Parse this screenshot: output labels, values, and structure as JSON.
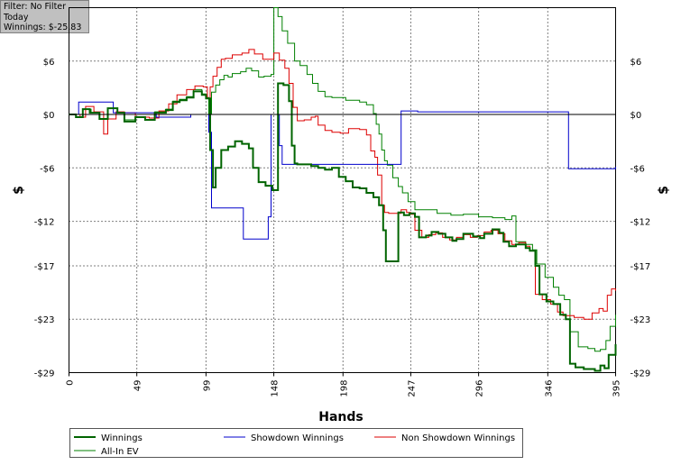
{
  "info": {
    "filter": "Filter: No Filter",
    "period": "Today",
    "winnings": "Winnings: $-25.83"
  },
  "chart_data": {
    "type": "line",
    "title": "",
    "xlabel": "Hands",
    "ylabel": "$",
    "x_ticks": [
      0,
      49,
      99,
      148,
      198,
      247,
      296,
      346,
      395
    ],
    "y_ticks": [
      6,
      0,
      -6,
      -12,
      -17,
      -23,
      -29
    ],
    "y_tick_labels": [
      "$6",
      "$0",
      "-$6",
      "-$12",
      "-$17",
      "-$23",
      "-$29"
    ],
    "xlim": [
      0,
      395
    ],
    "ylim": [
      -29,
      12
    ],
    "grid": true,
    "legend_position": "bottom",
    "series": [
      {
        "name": "Winnings",
        "color": "#006400",
        "width": 2,
        "points": [
          [
            0,
            0
          ],
          [
            5,
            -0.3
          ],
          [
            10,
            0.6
          ],
          [
            15,
            0.2
          ],
          [
            22,
            -0.5
          ],
          [
            28,
            0.7
          ],
          [
            35,
            0.2
          ],
          [
            40,
            -0.8
          ],
          [
            48,
            -0.3
          ],
          [
            55,
            -0.6
          ],
          [
            62,
            0.2
          ],
          [
            70,
            0.5
          ],
          [
            75,
            1.4
          ],
          [
            80,
            1.6
          ],
          [
            85,
            1.9
          ],
          [
            90,
            2.6
          ],
          [
            96,
            2.2
          ],
          [
            99,
            1.8
          ],
          [
            102,
            -4
          ],
          [
            104,
            -8.2
          ],
          [
            106,
            -6
          ],
          [
            110,
            -4
          ],
          [
            115,
            -3.6
          ],
          [
            120,
            -3
          ],
          [
            125,
            -3.3
          ],
          [
            130,
            -3.8
          ],
          [
            133,
            -6
          ],
          [
            137,
            -7.6
          ],
          [
            142,
            -8
          ],
          [
            147,
            -8.5
          ],
          [
            150,
            -8.5
          ],
          [
            151,
            3.5
          ],
          [
            155,
            3.3
          ],
          [
            159,
            1.5
          ],
          [
            161,
            -3.5
          ],
          [
            163,
            -5.5
          ],
          [
            165,
            -5.6
          ],
          [
            175,
            -5.8
          ],
          [
            180,
            -6
          ],
          [
            185,
            -6.2
          ],
          [
            190,
            -6
          ],
          [
            195,
            -7
          ],
          [
            200,
            -7.5
          ],
          [
            205,
            -8.2
          ],
          [
            210,
            -8.3
          ],
          [
            215,
            -8.8
          ],
          [
            220,
            -9.3
          ],
          [
            224,
            -10.2
          ],
          [
            227,
            -13
          ],
          [
            229,
            -16.5
          ],
          [
            235,
            -16.5
          ],
          [
            238,
            -11
          ],
          [
            242,
            -11.3
          ],
          [
            246,
            -11.1
          ],
          [
            250,
            -11.5
          ],
          [
            253,
            -13.8
          ],
          [
            258,
            -13.6
          ],
          [
            262,
            -13.2
          ],
          [
            267,
            -13.4
          ],
          [
            272,
            -13.8
          ],
          [
            277,
            -14.2
          ],
          [
            280,
            -14
          ],
          [
            285,
            -13.4
          ],
          [
            292,
            -13.7
          ],
          [
            297,
            -13.9
          ],
          [
            300,
            -13.4
          ],
          [
            306,
            -12.9
          ],
          [
            311,
            -13.3
          ],
          [
            314,
            -14.3
          ],
          [
            318,
            -14.8
          ],
          [
            323,
            -14.6
          ],
          [
            330,
            -15
          ],
          [
            333,
            -15.3
          ],
          [
            337,
            -17
          ],
          [
            340,
            -20.2
          ],
          [
            345,
            -21
          ],
          [
            350,
            -21.3
          ],
          [
            355,
            -22.5
          ],
          [
            359,
            -23
          ],
          [
            362,
            -28
          ],
          [
            366,
            -28.4
          ],
          [
            372,
            -28.6
          ],
          [
            380,
            -28.8
          ],
          [
            384,
            -28.2
          ],
          [
            387,
            -28.5
          ],
          [
            390,
            -27
          ],
          [
            395,
            -25.8
          ]
        ]
      },
      {
        "name": "Showdown Winnings",
        "color": "#0000cc",
        "width": 1,
        "points": [
          [
            0,
            0
          ],
          [
            6,
            0
          ],
          [
            7,
            1.4
          ],
          [
            30,
            1.4
          ],
          [
            32,
            0.2
          ],
          [
            60,
            0.2
          ],
          [
            63,
            -0.3
          ],
          [
            85,
            -0.3
          ],
          [
            88,
            0
          ],
          [
            99,
            0
          ],
          [
            101,
            -2
          ],
          [
            103,
            -10.5
          ],
          [
            122,
            -10.5
          ],
          [
            126,
            -14
          ],
          [
            142,
            -14
          ],
          [
            144,
            -11.5
          ],
          [
            146,
            0
          ],
          [
            150,
            0
          ],
          [
            152,
            -3.5
          ],
          [
            154,
            -5.6
          ],
          [
            160,
            -5.6
          ],
          [
            175,
            -5.6
          ],
          [
            200,
            -5.6
          ],
          [
            225,
            -5.6
          ],
          [
            238,
            -5.6
          ],
          [
            240,
            0.4
          ],
          [
            250,
            0.4
          ],
          [
            252,
            0.3
          ],
          [
            300,
            0.3
          ],
          [
            350,
            0.3
          ],
          [
            359,
            0.3
          ],
          [
            361,
            -6.1
          ],
          [
            380,
            -6.1
          ],
          [
            395,
            -5.9
          ]
        ]
      },
      {
        "name": "Non Showdown Winnings",
        "color": "#dd0000",
        "width": 1,
        "points": [
          [
            0,
            0
          ],
          [
            8,
            -0.3
          ],
          [
            12,
            0.9
          ],
          [
            18,
            0.3
          ],
          [
            25,
            -2.2
          ],
          [
            28,
            -0.5
          ],
          [
            34,
            0.3
          ],
          [
            40,
            0.2
          ],
          [
            48,
            -0.3
          ],
          [
            58,
            -0.4
          ],
          [
            65,
            0.4
          ],
          [
            72,
            1.2
          ],
          [
            78,
            2.2
          ],
          [
            85,
            2.8
          ],
          [
            91,
            3.2
          ],
          [
            97,
            3.1
          ],
          [
            100,
            1.8
          ],
          [
            102,
            3.1
          ],
          [
            104,
            4.3
          ],
          [
            107,
            5.3
          ],
          [
            110,
            6.2
          ],
          [
            113,
            6.3
          ],
          [
            118,
            6.7
          ],
          [
            125,
            6.9
          ],
          [
            130,
            7.3
          ],
          [
            134,
            6.8
          ],
          [
            140,
            6.2
          ],
          [
            148,
            6.9
          ],
          [
            152,
            6.1
          ],
          [
            156,
            5.2
          ],
          [
            159,
            3.5
          ],
          [
            162,
            0.8
          ],
          [
            165,
            -0.7
          ],
          [
            170,
            -0.6
          ],
          [
            175,
            -0.3
          ],
          [
            178,
            -0.2
          ],
          [
            180,
            -1.2
          ],
          [
            185,
            -1.8
          ],
          [
            190,
            -2
          ],
          [
            196,
            -2.1
          ],
          [
            202,
            -1.6
          ],
          [
            210,
            -1.7
          ],
          [
            215,
            -2.3
          ],
          [
            218,
            -4.1
          ],
          [
            221,
            -4.8
          ],
          [
            223,
            -6.8
          ],
          [
            226,
            -10.2
          ],
          [
            228,
            -11
          ],
          [
            231,
            -11.1
          ],
          [
            238,
            -11.1
          ],
          [
            240,
            -10.7
          ],
          [
            244,
            -11
          ],
          [
            247,
            -11.2
          ],
          [
            250,
            -13
          ],
          [
            255,
            -13.8
          ],
          [
            260,
            -13.5
          ],
          [
            265,
            -13.3
          ],
          [
            270,
            -13.8
          ],
          [
            275,
            -14.1
          ],
          [
            280,
            -13.8
          ],
          [
            285,
            -13.5
          ],
          [
            290,
            -13.8
          ],
          [
            295,
            -13.6
          ],
          [
            300,
            -13.2
          ],
          [
            305,
            -13
          ],
          [
            310,
            -13.4
          ],
          [
            315,
            -14.2
          ],
          [
            320,
            -14.6
          ],
          [
            325,
            -14.4
          ],
          [
            330,
            -14.8
          ],
          [
            333,
            -15.3
          ],
          [
            337,
            -20.2
          ],
          [
            342,
            -20.8
          ],
          [
            348,
            -21.3
          ],
          [
            353,
            -22.2
          ],
          [
            357,
            -22.6
          ],
          [
            365,
            -22.8
          ],
          [
            372,
            -23
          ],
          [
            378,
            -22.3
          ],
          [
            383,
            -21.8
          ],
          [
            386,
            -22.1
          ],
          [
            389,
            -20.3
          ],
          [
            392,
            -19.6
          ],
          [
            395,
            -19.8
          ]
        ]
      },
      {
        "name": "All-In EV",
        "color": "#008000",
        "width": 1,
        "points": [
          [
            0,
            0
          ],
          [
            5,
            -0.3
          ],
          [
            10,
            0.6
          ],
          [
            16,
            0.2
          ],
          [
            22,
            -0.5
          ],
          [
            28,
            0.7
          ],
          [
            35,
            0.2
          ],
          [
            40,
            -0.6
          ],
          [
            48,
            -0.3
          ],
          [
            55,
            -0.6
          ],
          [
            62,
            0.3
          ],
          [
            70,
            0.6
          ],
          [
            75,
            1.5
          ],
          [
            80,
            1.7
          ],
          [
            85,
            2
          ],
          [
            90,
            2.8
          ],
          [
            96,
            2.3
          ],
          [
            99,
            1.9
          ],
          [
            101,
            0
          ],
          [
            103,
            2.5
          ],
          [
            106,
            3.3
          ],
          [
            109,
            3.9
          ],
          [
            112,
            4.4
          ],
          [
            115,
            4.2
          ],
          [
            118,
            4.6
          ],
          [
            124,
            4.8
          ],
          [
            128,
            5.2
          ],
          [
            132,
            4.9
          ],
          [
            137,
            4.2
          ],
          [
            141,
            4.3
          ],
          [
            146,
            4.5
          ],
          [
            148,
            12
          ],
          [
            151,
            11
          ],
          [
            154,
            9.4
          ],
          [
            158,
            8
          ],
          [
            163,
            6
          ],
          [
            167,
            5.5
          ],
          [
            172,
            4.5
          ],
          [
            176,
            3.5
          ],
          [
            180,
            2.6
          ],
          [
            185,
            2
          ],
          [
            190,
            1.9
          ],
          [
            200,
            1.6
          ],
          [
            210,
            1.4
          ],
          [
            215,
            1.1
          ],
          [
            220,
            0.1
          ],
          [
            222,
            -1.1
          ],
          [
            224,
            -2.2
          ],
          [
            226,
            -4
          ],
          [
            228,
            -5.2
          ],
          [
            230,
            -5.7
          ],
          [
            234,
            -7.1
          ],
          [
            238,
            -8.1
          ],
          [
            241,
            -8.8
          ],
          [
            245,
            -9.8
          ],
          [
            250,
            -10.7
          ],
          [
            258,
            -10.7
          ],
          [
            266,
            -11.1
          ],
          [
            276,
            -11.3
          ],
          [
            285,
            -11.2
          ],
          [
            296,
            -11.5
          ],
          [
            306,
            -11.6
          ],
          [
            315,
            -11.8
          ],
          [
            320,
            -11.4
          ],
          [
            323,
            -14.3
          ],
          [
            330,
            -14.6
          ],
          [
            335,
            -15.2
          ],
          [
            338,
            -16.8
          ],
          [
            344,
            -18.3
          ],
          [
            350,
            -19.4
          ],
          [
            354,
            -20.3
          ],
          [
            358,
            -20.8
          ],
          [
            362,
            -24.4
          ],
          [
            368,
            -26.1
          ],
          [
            375,
            -26.3
          ],
          [
            380,
            -26.6
          ],
          [
            384,
            -26.4
          ],
          [
            388,
            -25.4
          ],
          [
            391,
            -23.8
          ],
          [
            395,
            -22.5
          ]
        ]
      }
    ]
  }
}
